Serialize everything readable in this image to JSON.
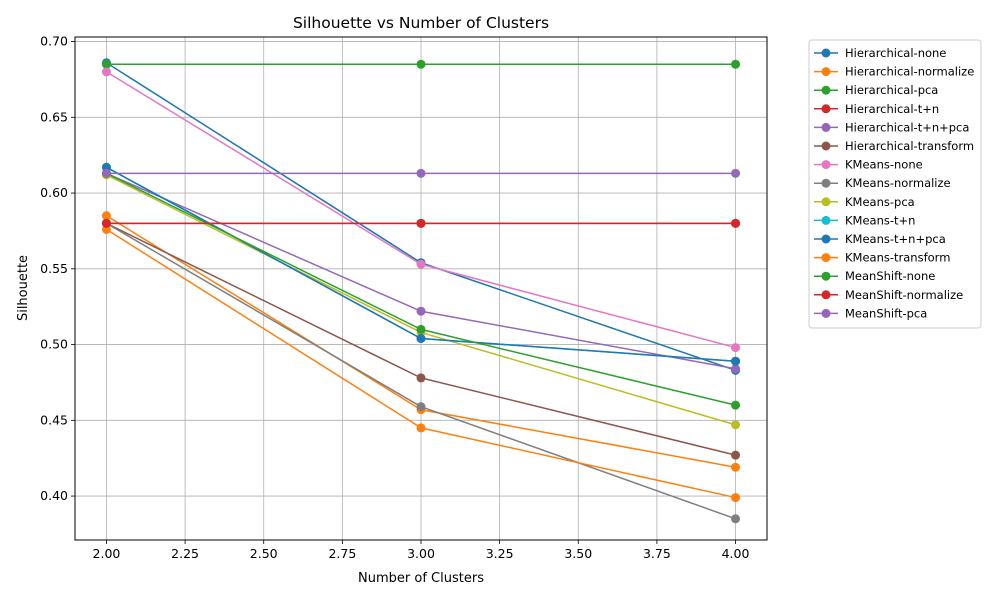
{
  "chart_data": {
    "type": "line",
    "title": "Silhouette vs Number of Clusters",
    "xlabel": "Number of Clusters",
    "ylabel": "Silhouette",
    "xlim": [
      1.9,
      4.1
    ],
    "ylim": [
      0.371,
      0.703
    ],
    "x_ticks": [
      "2.00",
      "2.25",
      "2.50",
      "2.75",
      "3.00",
      "3.25",
      "3.50",
      "3.75",
      "4.00"
    ],
    "y_ticks": [
      "0.40",
      "0.45",
      "0.50",
      "0.55",
      "0.60",
      "0.65",
      "0.70"
    ],
    "grid": true,
    "legend_position": "outside-right-top",
    "marker": "circle",
    "x": [
      2,
      3,
      4
    ],
    "series": [
      {
        "name": "Hierarchical-none",
        "color": "#1f77b4",
        "values": [
          0.686,
          0.554,
          0.483
        ]
      },
      {
        "name": "Hierarchical-normalize",
        "color": "#ff7f0e",
        "values": [
          0.585,
          0.457,
          0.419
        ]
      },
      {
        "name": "Hierarchical-pca",
        "color": "#2ca02c",
        "values": [
          0.685,
          0.685,
          0.685
        ]
      },
      {
        "name": "Hierarchical-t+n",
        "color": "#d62728",
        "values": [
          0.58,
          0.58,
          0.58
        ]
      },
      {
        "name": "Hierarchical-t+n+pca",
        "color": "#9467bd",
        "values": [
          0.613,
          0.522,
          0.484
        ]
      },
      {
        "name": "Hierarchical-transform",
        "color": "#8c564b",
        "values": [
          0.58,
          0.478,
          0.427
        ]
      },
      {
        "name": "KMeans-none",
        "color": "#e377c2",
        "values": [
          0.68,
          0.553,
          0.498
        ]
      },
      {
        "name": "KMeans-normalize",
        "color": "#7f7f7f",
        "values": [
          0.58,
          0.459,
          0.385
        ]
      },
      {
        "name": "KMeans-pca",
        "color": "#bcbd22",
        "values": [
          0.612,
          0.508,
          0.447
        ]
      },
      {
        "name": "KMeans-t+n",
        "color": "#17becf",
        "values": [
          0.617,
          0.504,
          0.489
        ]
      },
      {
        "name": "KMeans-t+n+pca",
        "color": "#1f77b4",
        "values": [
          0.617,
          0.504,
          0.489
        ]
      },
      {
        "name": "KMeans-transform",
        "color": "#ff7f0e",
        "values": [
          0.576,
          0.445,
          0.399
        ]
      },
      {
        "name": "MeanShift-none",
        "color": "#2ca02c",
        "values": [
          0.613,
          0.51,
          0.46
        ]
      },
      {
        "name": "MeanShift-normalize",
        "color": "#d62728",
        "values": [
          0.58,
          0.58,
          0.58
        ]
      },
      {
        "name": "MeanShift-pca",
        "color": "#9467bd",
        "values": [
          0.613,
          0.613,
          0.613
        ]
      }
    ]
  }
}
